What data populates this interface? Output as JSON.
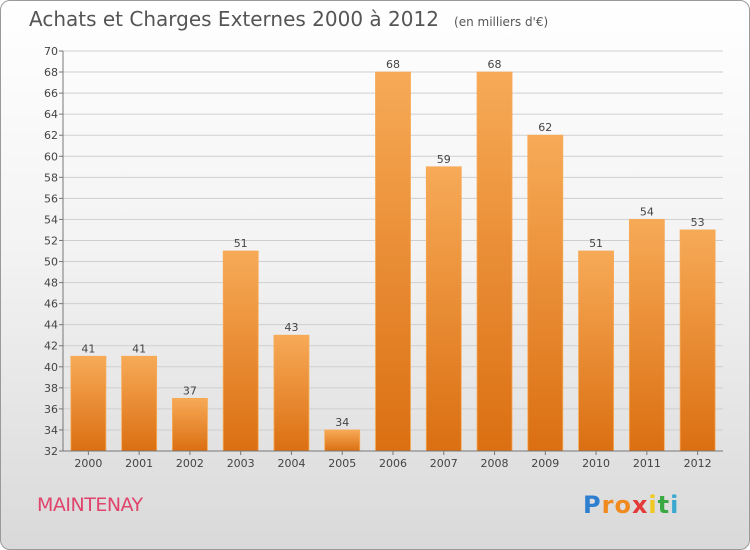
{
  "title": "Achats et Charges Externes 2000 à 2012",
  "unit": "(en milliers d'€)",
  "city": "MAINTENAY",
  "logo": {
    "text": "Proxiti",
    "letters": [
      "P",
      "r",
      "o",
      "x",
      "i",
      "t",
      "i"
    ],
    "colors": [
      "#2f7fd0",
      "#f08a1f",
      "#f08a1f",
      "#e33a3a",
      "#f0c81f",
      "#3aa843",
      "#3aa8d0"
    ]
  },
  "colors": {
    "bar": "#f28a2e",
    "bar_light": "#f7aa57",
    "bar_dark": "#db6f12",
    "grid": "#cfcfcf",
    "text": "#444444"
  },
  "chart_data": {
    "type": "bar",
    "title": "Achats et Charges Externes 2000 à 2012",
    "categories": [
      "2000",
      "2001",
      "2002",
      "2003",
      "2004",
      "2005",
      "2006",
      "2007",
      "2008",
      "2009",
      "2010",
      "2011",
      "2012"
    ],
    "values": [
      41,
      41,
      37,
      51,
      43,
      34,
      68,
      59,
      68,
      62,
      51,
      54,
      53
    ],
    "ylim": [
      32,
      70
    ],
    "yticks": [
      32,
      34,
      36,
      38,
      40,
      42,
      44,
      46,
      48,
      50,
      52,
      54,
      56,
      58,
      60,
      62,
      64,
      66,
      68,
      70
    ],
    "grid": true,
    "data_labels": true
  }
}
